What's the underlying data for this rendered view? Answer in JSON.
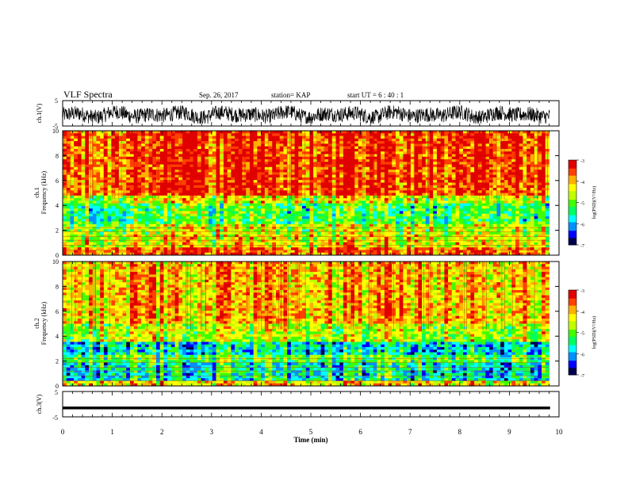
{
  "header": {
    "title": "VLF Spectra",
    "date": "Sep. 26, 2017",
    "station": "station= KAP",
    "start": "start  UT =   6  : 40 : 1"
  },
  "chart_data": [
    {
      "type": "line",
      "ylabel": "ch.1(V)",
      "ylim": [
        -5,
        5
      ],
      "y_ticks": [
        "5",
        "-5"
      ],
      "xlim": [
        0,
        10
      ],
      "description_values": {
        "typical_min": -4,
        "typical_max": 3
      }
    },
    {
      "type": "heatmap",
      "ylabel": "Frequency  (kHz)",
      "channel": "ch.1",
      "xlim": [
        0,
        10
      ],
      "ylim": [
        0,
        10
      ],
      "y_ticks": [
        "0",
        "2",
        "4",
        "6",
        "8",
        "10"
      ],
      "data_extent_x": 9.8,
      "bands": [
        {
          "from": 0,
          "to": 0.6,
          "level": -3.6
        },
        {
          "from": 0.6,
          "to": 1.6,
          "level": -4.4
        },
        {
          "from": 1.6,
          "to": 2.4,
          "level": -4.6
        },
        {
          "from": 2.4,
          "to": 4.2,
          "level": -5.2
        },
        {
          "from": 4.2,
          "to": 4.8,
          "level": -4.5
        },
        {
          "from": 4.8,
          "to": 10,
          "level": -3.5
        }
      ],
      "colorbar": {
        "label": "log(PSD)(V²/Hz)",
        "ticks": [
          "-3",
          "-4",
          "-5",
          "-6",
          "-7"
        ],
        "range": [
          -7,
          -3
        ]
      }
    },
    {
      "type": "heatmap",
      "ylabel": "Frequency  (kHz)",
      "channel": "ch.2",
      "xlim": [
        0,
        10
      ],
      "ylim": [
        0,
        10
      ],
      "y_ticks": [
        "0",
        "2",
        "4",
        "6",
        "8",
        "10"
      ],
      "data_extent_x": 9.8,
      "bands": [
        {
          "from": 0,
          "to": 0.5,
          "level": -4.2
        },
        {
          "from": 0.5,
          "to": 1.8,
          "level": -5.6
        },
        {
          "from": 1.8,
          "to": 2.4,
          "level": -5.0
        },
        {
          "from": 2.4,
          "to": 3.6,
          "level": -5.7
        },
        {
          "from": 3.6,
          "to": 5.0,
          "level": -4.6
        },
        {
          "from": 5.0,
          "to": 10,
          "level": -4.0
        }
      ],
      "colorbar": {
        "label": "log(PSD)(V²/Hz)",
        "ticks": [
          "-3",
          "-4",
          "-5",
          "-6",
          "-7"
        ],
        "range": [
          -7,
          -3
        ]
      }
    },
    {
      "type": "line",
      "ylabel": "ch.3(V)",
      "ylim": [
        -5,
        5
      ],
      "y_ticks": [
        "5",
        "-5"
      ],
      "xlim": [
        0,
        10
      ],
      "x_ticks": [
        "0",
        "1",
        "2",
        "3",
        "4",
        "5",
        "6",
        "7",
        "8",
        "9",
        "10"
      ],
      "xlabel": "Time  (min)",
      "constant_value": -1.5
    }
  ],
  "colors": {
    "scale": [
      "#000050",
      "#0000ff",
      "#0090ff",
      "#00ffff",
      "#00ff60",
      "#40ff00",
      "#c0ff00",
      "#ffff00",
      "#ffb000",
      "#ff4000",
      "#e00000",
      "#ffffff"
    ]
  }
}
